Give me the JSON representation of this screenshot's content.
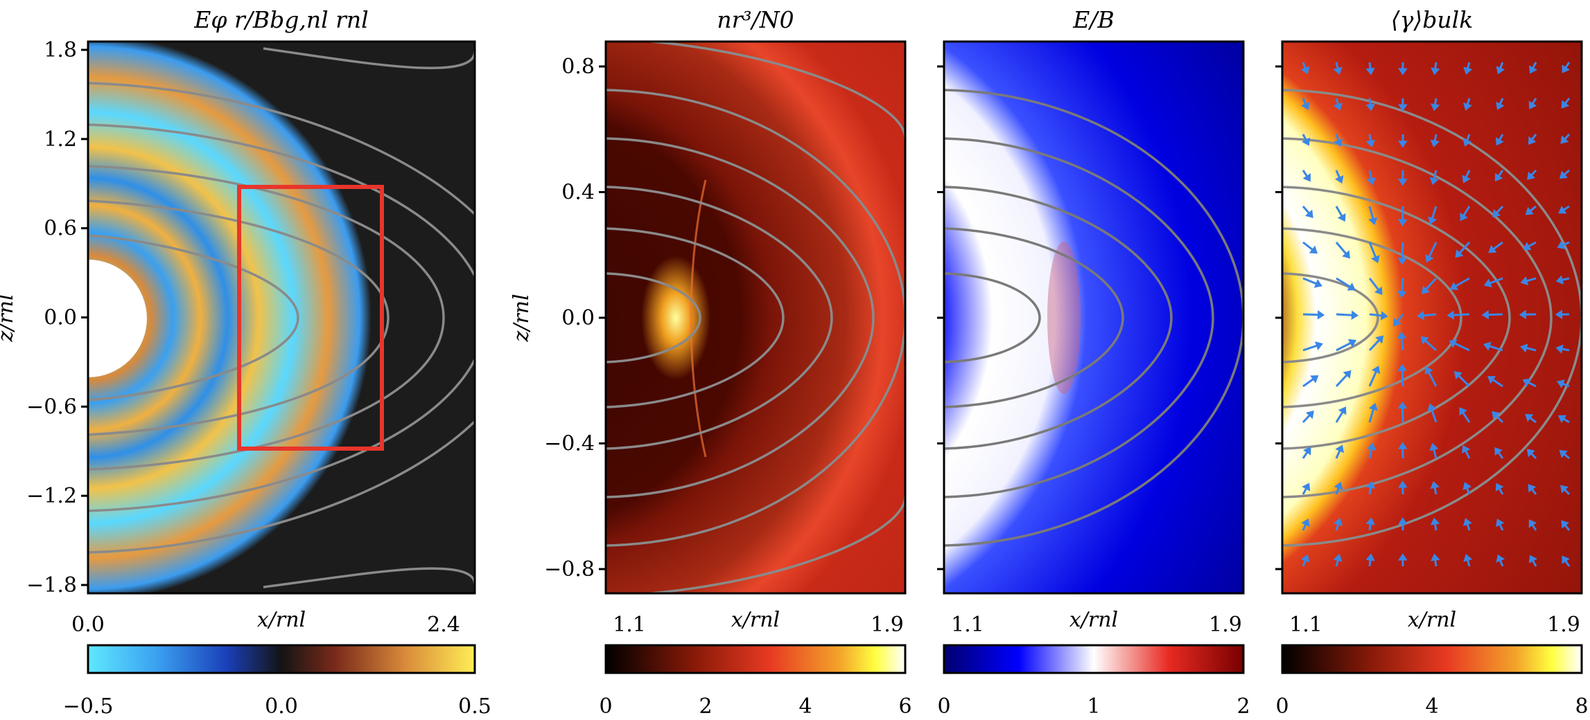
{
  "figure": {
    "panels": [
      {
        "id": "a",
        "title": "Eφ r/Bbg,nl rnl",
        "xlabel": "x/rnl",
        "ylabel": "z/rnl",
        "x_ticks": [
          "0.0",
          "2.4"
        ],
        "y_ticks": [
          "1.8",
          "1.2",
          "0.6",
          "0.0",
          "−0.6",
          "−1.2",
          "−1.8"
        ],
        "colorbar": {
          "ticks": [
            "−0.5",
            "0.0",
            "0.5"
          ],
          "colormap": "cyan-blue-black-red-yellow",
          "range": [
            -0.5,
            0.5
          ]
        }
      },
      {
        "id": "b",
        "title": "nr³/N0",
        "xlabel": "x/rnl",
        "ylabel": "z/rnl",
        "x_ticks": [
          "1.1",
          "1.9"
        ],
        "y_ticks": [
          "0.8",
          "0.4",
          "0.0",
          "−0.4",
          "−0.8"
        ],
        "colorbar": {
          "ticks": [
            "0",
            "2",
            "4",
            "6"
          ],
          "colormap": "black-red-yellow-white",
          "range": [
            0,
            6
          ]
        }
      },
      {
        "id": "c",
        "title": "E/B",
        "xlabel": "x/rnl",
        "x_ticks": [
          "1.1",
          "1.9"
        ],
        "colorbar": {
          "ticks": [
            "0",
            "1",
            "2"
          ],
          "colormap": "blue-white-red",
          "range": [
            0,
            2
          ]
        }
      },
      {
        "id": "d",
        "title": "⟨γ⟩bulk",
        "xlabel": "x/rnl",
        "x_ticks": [
          "1.1",
          "1.9"
        ],
        "colorbar": {
          "ticks": [
            "0",
            "4",
            "8"
          ],
          "colormap": "black-red-yellow-white",
          "range": [
            0,
            8
          ]
        }
      }
    ],
    "colors": {
      "field_lines": "#8a8a8a",
      "zoom_box": "#e8352b",
      "arrows": "#3a86e6",
      "background_dark": "#1c1c1c"
    }
  }
}
